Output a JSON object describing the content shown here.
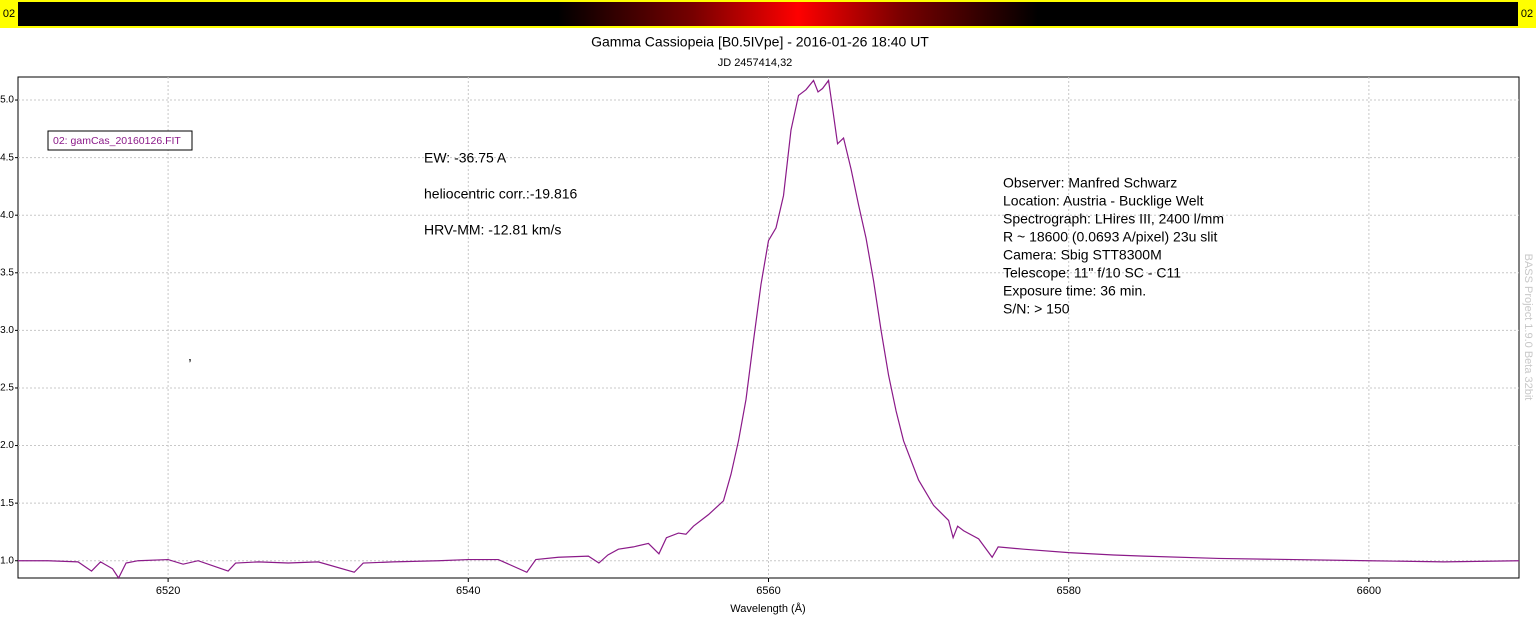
{
  "chart_data": {
    "type": "line",
    "title": "Gamma Cassiopeia [B0.5IVpe] - 2016-01-26 18:40 UT",
    "subtitle": "JD 2457414,32",
    "xlabel": "Wavelength (Å)",
    "strip_labels": [
      "02",
      "02"
    ],
    "x": [
      6510,
      6512,
      6514,
      6514.9,
      6515.5,
      6516.3,
      6516.7,
      6517.2,
      6518,
      6520,
      6521,
      6522,
      6524,
      6524.5,
      6526,
      6528,
      6530,
      6532.4,
      6533,
      6535,
      6538,
      6540,
      6542,
      6543.9,
      6544.5,
      6546,
      6548,
      6548.7,
      6549.3,
      6550,
      6551,
      6552,
      6552.7,
      6553.2,
      6554,
      6554.5,
      6555,
      6556,
      6557,
      6557.5,
      6558,
      6558.5,
      6559,
      6559.5,
      6560,
      6560.5,
      6561,
      6561.5,
      6562,
      6562.5,
      6563,
      6563.3,
      6563.6,
      6564,
      6564.3,
      6564.6,
      6565,
      6565.5,
      6566,
      6566.5,
      6567,
      6567.5,
      6568,
      6568.5,
      6569,
      6570,
      6571,
      6572,
      6572.3,
      6572.6,
      6573,
      6574,
      6574.9,
      6575.3,
      6577,
      6580,
      6583,
      6585,
      6590,
      6595,
      6600,
      6605,
      6610
    ],
    "series": [
      {
        "name": "02: gamCas_20160126.FIT",
        "color": "#8b1a89",
        "values": [
          1.0,
          1.0,
          0.99,
          0.91,
          0.99,
          0.93,
          0.85,
          0.98,
          1.0,
          1.01,
          0.97,
          1.0,
          0.91,
          0.98,
          0.99,
          0.98,
          0.99,
          0.9,
          0.98,
          0.99,
          1.0,
          1.01,
          1.01,
          0.9,
          1.01,
          1.03,
          1.04,
          0.98,
          1.05,
          1.1,
          1.12,
          1.15,
          1.06,
          1.2,
          1.24,
          1.23,
          1.3,
          1.4,
          1.52,
          1.75,
          2.04,
          2.4,
          2.91,
          3.4,
          3.78,
          3.89,
          4.17,
          4.74,
          5.04,
          5.09,
          5.17,
          5.07,
          5.1,
          5.17,
          4.9,
          4.62,
          4.67,
          4.4,
          4.09,
          3.8,
          3.43,
          3.0,
          2.61,
          2.3,
          2.04,
          1.7,
          1.48,
          1.35,
          1.2,
          1.3,
          1.26,
          1.19,
          1.03,
          1.12,
          1.1,
          1.07,
          1.05,
          1.04,
          1.02,
          1.01,
          1.0,
          0.99,
          1.0
        ]
      }
    ],
    "xlim": [
      6510,
      6610
    ],
    "ylim": [
      0.85,
      5.2
    ],
    "xticks": [
      6520,
      6540,
      6560,
      6580,
      6600
    ],
    "yticks": [
      {
        "value": 1,
        "label": "1.0"
      },
      {
        "value": 1.5,
        "label": "1.5"
      },
      {
        "value": 2,
        "label": "2.0"
      },
      {
        "value": 2.5,
        "label": "2.5"
      },
      {
        "value": 3,
        "label": "3.0"
      },
      {
        "value": 3.5,
        "label": "3.5"
      },
      {
        "value": 4,
        "label": "4.0"
      },
      {
        "value": 4.5,
        "label": "4.5"
      },
      {
        "value": 5,
        "label": "5.0"
      }
    ],
    "grid": true,
    "legend": "upper left",
    "annotations": [
      "EW: -36.75 A",
      "heliocentric corr.:-19.816",
      "HRV-MM: -12.81 km/s",
      ","
    ],
    "info": [
      "Observer: Manfred Schwarz",
      "Location: Austria - Bucklige Welt",
      "Spectrograph: LHires III, 2400 l/mm",
      "R ~ 18600 (0.0693 A/pixel) 23u slit",
      "Camera: Sbig STT8300M",
      "Telescope: 11\" f/10 SC - C11",
      "Exposure time: 36 min.",
      "S/N:  > 150"
    ],
    "watermark": "BASS Project 1.9.0 Beta 32bit"
  }
}
